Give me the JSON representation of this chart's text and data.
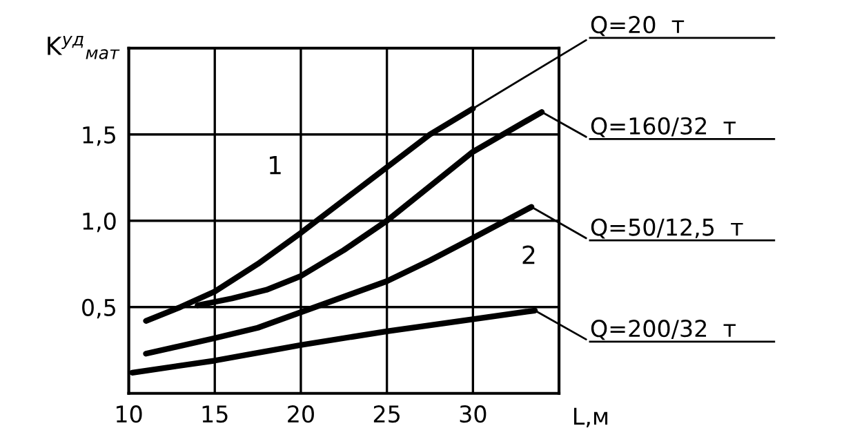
{
  "chart_data": {
    "type": "line",
    "xlabel": "L,м",
    "ylabel": "K$^{уд}$$_{мат}$",
    "xlim": [
      10,
      35
    ],
    "xticks": [
      10,
      15,
      20,
      25,
      30
    ],
    "ylim": [
      0,
      2
    ],
    "yticks": [
      {
        "value": 0.5,
        "label": "0,5"
      },
      {
        "value": 1.0,
        "label": "1,0"
      },
      {
        "value": 1.5,
        "label": "1,5"
      }
    ],
    "grid": true,
    "legend": "right",
    "marker": "none",
    "line_style": "solid",
    "series": [
      {
        "name": "Q=20  т",
        "color": "#000000",
        "x": [
          11,
          13,
          15,
          17.5,
          20,
          22.5,
          25,
          27.5,
          30
        ],
        "values": [
          0.42,
          0.5,
          0.59,
          0.75,
          0.93,
          1.12,
          1.31,
          1.5,
          1.65
        ]
      },
      {
        "name": "Q=160/32  т",
        "color": "#000000",
        "x": [
          14,
          16,
          18,
          20,
          22.5,
          25,
          27.5,
          30,
          34
        ],
        "values": [
          0.51,
          0.55,
          0.6,
          0.68,
          0.83,
          1.0,
          1.2,
          1.4,
          1.63
        ]
      },
      {
        "name": "Q=50/12,5  т",
        "color": "#000000",
        "x": [
          11,
          15,
          17.5,
          20,
          22.5,
          25,
          27.5,
          30,
          33.4
        ],
        "values": [
          0.23,
          0.32,
          0.38,
          0.47,
          0.56,
          0.65,
          0.77,
          0.9,
          1.08
        ]
      },
      {
        "name": "Q=200/32  т",
        "color": "#000000",
        "x": [
          10.2,
          15,
          20,
          25,
          30,
          33.6
        ],
        "values": [
          0.12,
          0.19,
          0.28,
          0.36,
          0.43,
          0.48
        ]
      }
    ],
    "annotations": [
      "1",
      "2"
    ]
  }
}
